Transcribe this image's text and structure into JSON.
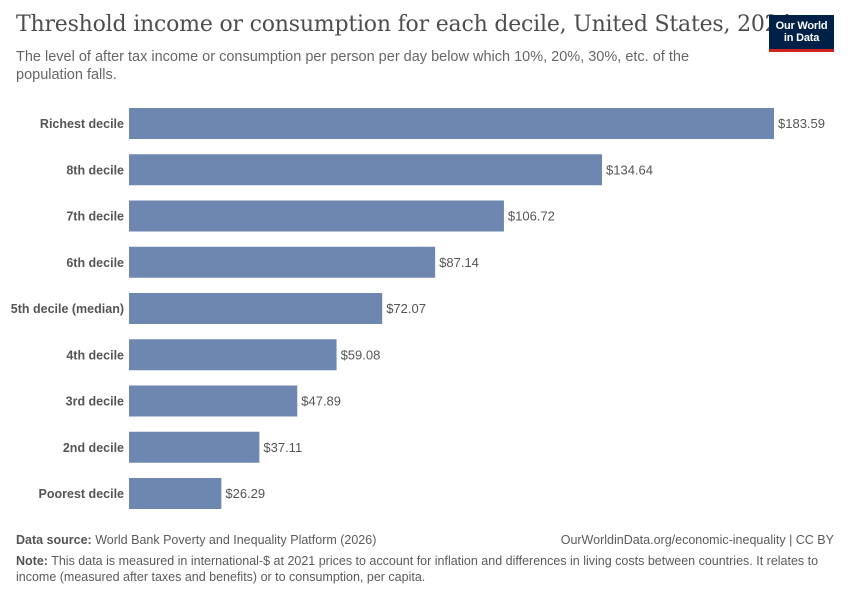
{
  "header": {
    "title": "Threshold income or consumption for each decile, United States, 2024",
    "subtitle": "The level of after tax income or consumption per person per day below which 10%, 20%, 30%, etc. of the population falls."
  },
  "logo": {
    "line1": "Our World",
    "line2": "in Data"
  },
  "chart_data": {
    "type": "bar",
    "orientation": "horizontal",
    "categories": [
      "Richest decile",
      "8th decile",
      "7th decile",
      "6th decile",
      "5th decile (median)",
      "4th decile",
      "3rd decile",
      "2nd decile",
      "Poorest decile"
    ],
    "values": [
      183.59,
      134.64,
      106.72,
      87.14,
      72.07,
      59.08,
      47.89,
      37.11,
      26.29
    ],
    "value_labels": [
      "$183.59",
      "$134.64",
      "$106.72",
      "$87.14",
      "$72.07",
      "$59.08",
      "$47.89",
      "$37.11",
      "$26.29"
    ],
    "bar_color": "#6d87b1",
    "xlim": [
      0,
      183.59
    ],
    "grid": false
  },
  "footer": {
    "source_label": "Data source:",
    "source_text": "World Bank Poverty and Inequality Platform (2026)",
    "url_text": "OurWorldinData.org/economic-inequality | CC BY",
    "note_label": "Note:",
    "note_text": "This data is measured in international-$ at 2021 prices to account for inflation and differences in living costs between countries. It relates to income (measured after taxes and benefits) or to consumption, per capita."
  }
}
